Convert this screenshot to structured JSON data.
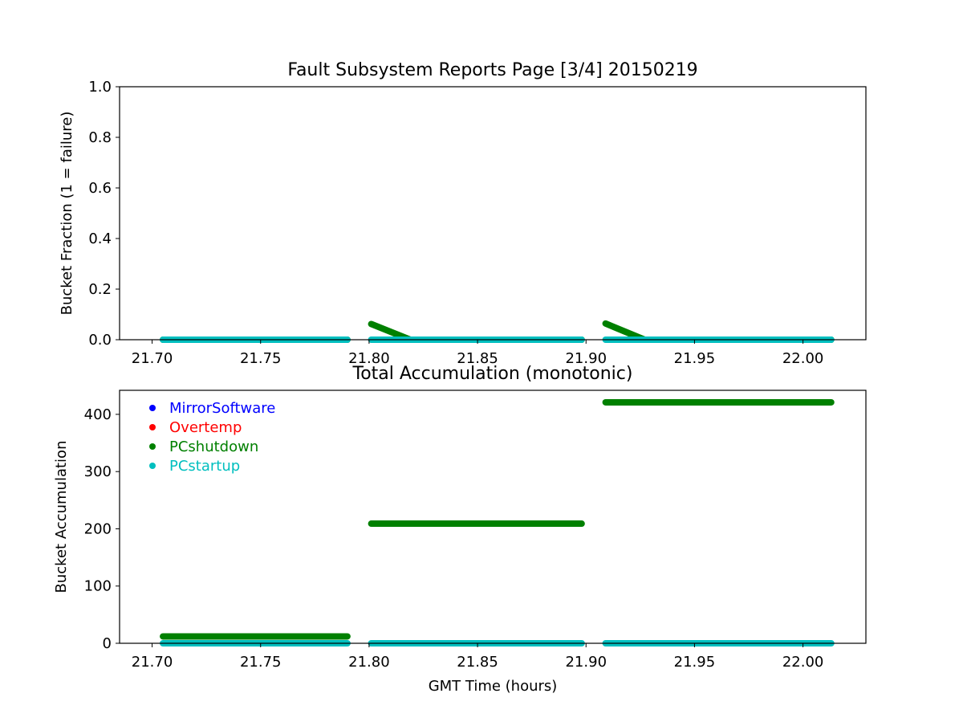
{
  "colors": {
    "MirrorSoftware": "#0000ff",
    "Overtemp": "#ff0000",
    "PCshutdown": "#008000",
    "PCstartup": "#00bfbf"
  },
  "chart_data": [
    {
      "type": "scatter",
      "title": "Fault Subsystem Reports Page [3/4] 20150219",
      "xlabel": "",
      "ylabel": "Bucket Fraction (1 = failure)",
      "xlim": [
        21.685,
        22.029
      ],
      "ylim": [
        0.0,
        1.0
      ],
      "xticks": [
        "21.70",
        "21.75",
        "21.80",
        "21.85",
        "21.90",
        "21.95",
        "22.00"
      ],
      "yticks": [
        "0.0",
        "0.2",
        "0.4",
        "0.6",
        "0.8",
        "1.0"
      ],
      "grid": false,
      "series": [
        {
          "name": "PCshutdown",
          "color_key": "PCshutdown",
          "segments": [
            {
              "x": [
                21.705,
                21.79
              ],
              "y": [
                0.0,
                0.0
              ]
            },
            {
              "x": [
                21.801,
                21.819
              ],
              "y": [
                0.062,
                0.0
              ]
            },
            {
              "x": [
                21.819,
                21.898
              ],
              "y": [
                0.0,
                0.0
              ]
            },
            {
              "x": [
                21.909,
                21.927
              ],
              "y": [
                0.064,
                0.0
              ]
            },
            {
              "x": [
                21.927,
                22.013
              ],
              "y": [
                0.0,
                0.0
              ]
            }
          ]
        },
        {
          "name": "PCstartup",
          "color_key": "PCstartup",
          "segments": [
            {
              "x": [
                21.705,
                21.79
              ],
              "y": [
                0.0,
                0.0
              ]
            },
            {
              "x": [
                21.801,
                21.898
              ],
              "y": [
                0.0,
                0.0
              ]
            },
            {
              "x": [
                21.909,
                22.013
              ],
              "y": [
                0.0,
                0.0
              ]
            }
          ]
        }
      ]
    },
    {
      "type": "scatter",
      "title": "Total Accumulation (monotonic)",
      "xlabel": "GMT Time (hours)",
      "ylabel": "Bucket Accumulation",
      "xlim": [
        21.685,
        22.029
      ],
      "ylim": [
        0,
        442
      ],
      "xticks": [
        "21.70",
        "21.75",
        "21.80",
        "21.85",
        "21.90",
        "21.95",
        "22.00"
      ],
      "yticks": [
        "0",
        "100",
        "200",
        "300",
        "400"
      ],
      "grid": false,
      "legend": {
        "placement": "top-left",
        "entries": [
          "MirrorSoftware",
          "Overtemp",
          "PCshutdown",
          "PCstartup"
        ]
      },
      "series": [
        {
          "name": "PCshutdown",
          "color_key": "PCshutdown",
          "segments": [
            {
              "x": [
                21.705,
                21.79
              ],
              "y": [
                12,
                12
              ]
            },
            {
              "x": [
                21.801,
                21.898
              ],
              "y": [
                209,
                209
              ]
            },
            {
              "x": [
                21.909,
                22.013
              ],
              "y": [
                421,
                421
              ]
            }
          ]
        },
        {
          "name": "PCstartup",
          "color_key": "PCstartup",
          "segments": [
            {
              "x": [
                21.705,
                21.79
              ],
              "y": [
                0,
                0
              ]
            },
            {
              "x": [
                21.801,
                21.898
              ],
              "y": [
                0,
                0
              ]
            },
            {
              "x": [
                21.909,
                22.013
              ],
              "y": [
                0,
                0
              ]
            }
          ]
        }
      ]
    }
  ]
}
